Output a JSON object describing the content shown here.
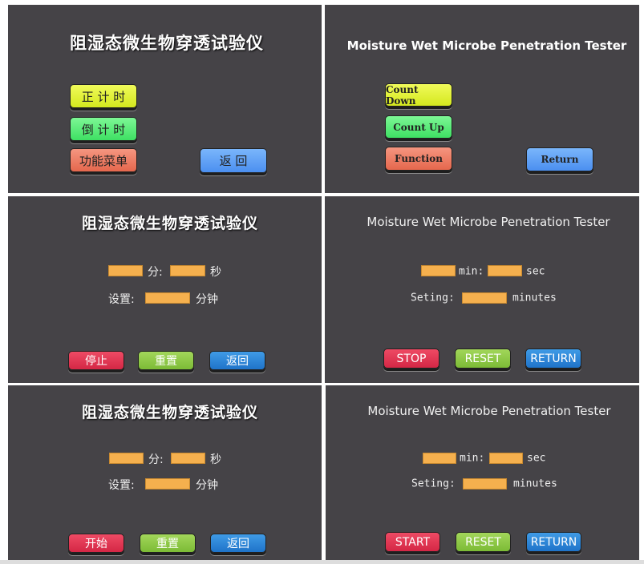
{
  "colors": {
    "panel_bg": "#454347",
    "yellow": "#e6f23c",
    "green": "#5cf07a",
    "salmon": "#ef7b62",
    "blue": "#5aa0f5",
    "red": "#e0334e",
    "lime": "#8cc743",
    "field": "#f5b04e"
  },
  "p1": {
    "title": "阻湿态微生物穿透试验仪",
    "count_up": "正 计 时",
    "count_down": "倒 计 时",
    "function": "功能菜单",
    "return": "返 回"
  },
  "p2": {
    "title": "Moisture Wet Microbe Penetration Tester",
    "count_down": "Count Down",
    "count_up": "Count  Up",
    "function": "Function",
    "return": "Return"
  },
  "p3": {
    "title": "阻湿态微生物穿透试验仪",
    "min": "分:",
    "sec": "秒",
    "setting": "设置:",
    "minutes": "分钟",
    "stop": "停止",
    "reset": "重置",
    "return": "返回"
  },
  "p4": {
    "title": "Moisture Wet Microbe Penetration Tester",
    "min": "min:",
    "sec": "sec",
    "setting": "Seting:",
    "minutes": "minutes",
    "stop": "STOP",
    "reset": "RESET",
    "return": "RETURN"
  },
  "p5": {
    "title": "阻湿态微生物穿透试验仪",
    "min": "分:",
    "sec": "秒",
    "setting": "设置:",
    "minutes": "分钟",
    "start": "开始",
    "reset": "重置",
    "return": "返回"
  },
  "p6": {
    "title": "Moisture Wet Microbe Penetration Tester",
    "min": "min:",
    "sec": "sec",
    "setting": "Seting:",
    "minutes": "minutes",
    "start": "START",
    "reset": "RESET",
    "return": "RETURN"
  }
}
